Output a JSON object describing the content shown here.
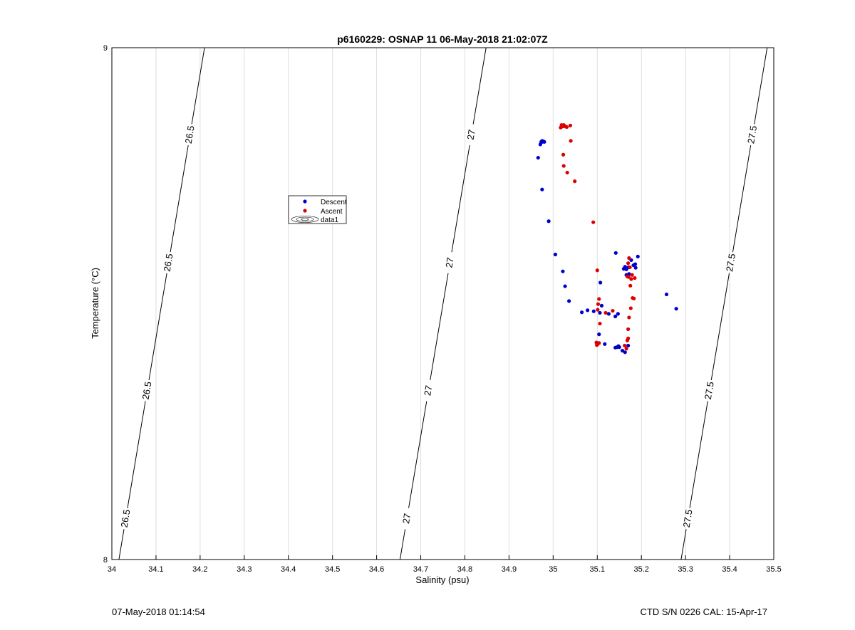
{
  "chart_data": {
    "type": "scatter",
    "title": "p6160229: OSNAP 11 06-May-2018 21:02:07Z",
    "xlabel": "Salinity (psu)",
    "ylabel": "Temperature (°C)",
    "xlim": [
      34,
      35.5
    ],
    "ylim": [
      8,
      9
    ],
    "xticks": [
      "34",
      "34.1",
      "34.2",
      "34.3",
      "34.4",
      "34.5",
      "34.6",
      "34.7",
      "34.8",
      "34.9",
      "35",
      "35.1",
      "35.2",
      "35.3",
      "35.4",
      "35.5"
    ],
    "yticks": [
      "8",
      "9"
    ],
    "grid": "vertical",
    "legend_placement": "upper-left-center",
    "legend": [
      "Descent",
      "Ascent",
      "data1"
    ],
    "contours": [
      {
        "level": "26.5",
        "bottom": [
          34.016,
          8.0
        ],
        "top": [
          34.21,
          9.0
        ]
      },
      {
        "level": "27",
        "bottom": [
          34.653,
          8.0
        ],
        "top": [
          34.848,
          9.0
        ]
      },
      {
        "level": "27.5",
        "bottom": [
          35.29,
          8.0
        ],
        "top": [
          35.485,
          9.0
        ]
      }
    ],
    "series": [
      {
        "name": "Descent",
        "color": "#0000cc",
        "points": [
          [
            34.975,
            8.818
          ],
          [
            34.973,
            8.816
          ],
          [
            34.976,
            8.816
          ],
          [
            34.978,
            8.817
          ],
          [
            34.98,
            8.816
          ],
          [
            34.971,
            8.811
          ],
          [
            34.966,
            8.785
          ],
          [
            34.975,
            8.723
          ],
          [
            34.99,
            8.661
          ],
          [
            35.005,
            8.596
          ],
          [
            35.022,
            8.563
          ],
          [
            35.027,
            8.534
          ],
          [
            35.036,
            8.505
          ],
          [
            35.065,
            8.483
          ],
          [
            35.078,
            8.487
          ],
          [
            35.092,
            8.485
          ],
          [
            35.107,
            8.541
          ],
          [
            35.106,
            8.482
          ],
          [
            35.11,
            8.496
          ],
          [
            35.126,
            8.48
          ],
          [
            35.141,
            8.475
          ],
          [
            35.147,
            8.48
          ],
          [
            35.142,
            8.599
          ],
          [
            35.16,
            8.568
          ],
          [
            35.166,
            8.567
          ],
          [
            35.163,
            8.572
          ],
          [
            35.171,
            8.571
          ],
          [
            35.177,
            8.585
          ],
          [
            35.182,
            8.575
          ],
          [
            35.186,
            8.577
          ],
          [
            35.192,
            8.592
          ],
          [
            35.187,
            8.57
          ],
          [
            35.172,
            8.558
          ],
          [
            35.166,
            8.556
          ],
          [
            35.104,
            8.44
          ],
          [
            35.117,
            8.421
          ],
          [
            35.141,
            8.414
          ],
          [
            35.145,
            8.415
          ],
          [
            35.148,
            8.417
          ],
          [
            35.15,
            8.415
          ],
          [
            35.157,
            8.408
          ],
          [
            35.163,
            8.405
          ],
          [
            35.17,
            8.418
          ],
          [
            35.257,
            8.518
          ],
          [
            35.279,
            8.49
          ]
        ]
      },
      {
        "name": "Ascent",
        "color": "#dd0000",
        "points": [
          [
            35.017,
            8.844
          ],
          [
            35.021,
            8.846
          ],
          [
            35.024,
            8.849
          ],
          [
            35.028,
            8.846
          ],
          [
            35.031,
            8.845
          ],
          [
            35.039,
            8.848
          ],
          [
            35.019,
            8.849
          ],
          [
            35.026,
            8.847
          ],
          [
            35.04,
            8.818
          ],
          [
            35.023,
            8.791
          ],
          [
            35.024,
            8.769
          ],
          [
            35.032,
            8.756
          ],
          [
            35.049,
            8.739
          ],
          [
            35.091,
            8.659
          ],
          [
            35.1,
            8.565
          ],
          [
            35.102,
            8.499
          ],
          [
            35.101,
            8.488
          ],
          [
            35.104,
            8.509
          ],
          [
            35.106,
            8.461
          ],
          [
            35.119,
            8.482
          ],
          [
            35.135,
            8.486
          ],
          [
            35.098,
            8.424
          ],
          [
            35.101,
            8.421
          ],
          [
            35.104,
            8.423
          ],
          [
            35.099,
            8.419
          ],
          [
            35.162,
            8.418
          ],
          [
            35.166,
            8.412
          ],
          [
            35.168,
            8.428
          ],
          [
            35.17,
            8.432
          ],
          [
            35.17,
            8.45
          ],
          [
            35.172,
            8.473
          ],
          [
            35.176,
            8.491
          ],
          [
            35.18,
            8.511
          ],
          [
            35.183,
            8.51
          ],
          [
            35.175,
            8.535
          ],
          [
            35.177,
            8.548
          ],
          [
            35.179,
            8.556
          ],
          [
            35.185,
            8.55
          ],
          [
            35.174,
            8.571
          ],
          [
            35.17,
            8.579
          ],
          [
            35.172,
            8.589
          ],
          [
            35.171,
            8.552
          ],
          [
            35.168,
            8.553
          ]
        ]
      }
    ]
  },
  "footer": {
    "left": "07-May-2018 01:14:54",
    "right": "CTD S/N 0226  CAL: 15-Apr-17"
  },
  "colors": {
    "descent": "#0000cc",
    "ascent": "#dd0000",
    "grid": "#dedede",
    "contour": "#000000"
  }
}
